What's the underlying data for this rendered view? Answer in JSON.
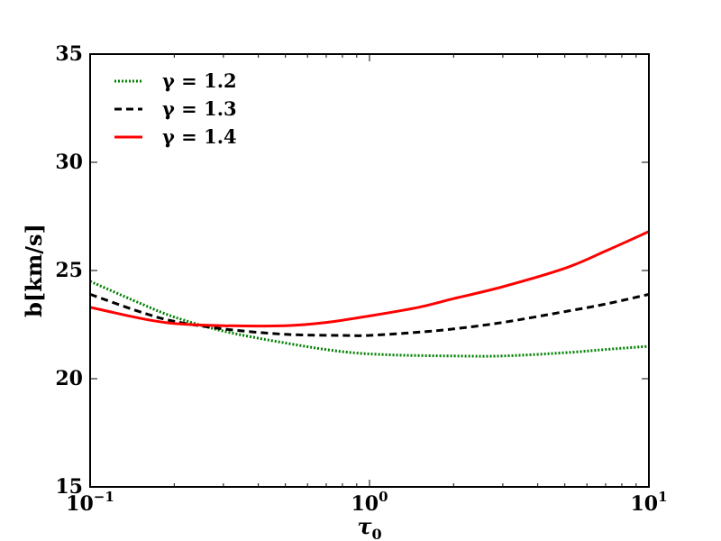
{
  "chart_data": {
    "type": "line",
    "xscale": "log",
    "xlim": [
      0.1,
      10
    ],
    "ylim": [
      15,
      35
    ],
    "xlabel_symbol": "τ",
    "xlabel_subscript": "0",
    "ylabel": "b[km/s]",
    "yticks": [
      15,
      20,
      25,
      30,
      35
    ],
    "xticks": [
      {
        "value": 0.1,
        "base": "10",
        "exp": "−1"
      },
      {
        "value": 1,
        "base": "10",
        "exp": "0"
      },
      {
        "value": 10,
        "base": "10",
        "exp": "1"
      }
    ],
    "grid": false,
    "legend_position": "top-left",
    "series": [
      {
        "name": "γ = 1.2",
        "color": "#008000",
        "dash": "dotted",
        "points": [
          [
            0.1,
            24.5
          ],
          [
            0.15,
            23.5
          ],
          [
            0.2,
            22.85
          ],
          [
            0.3,
            22.2
          ],
          [
            0.5,
            21.65
          ],
          [
            0.8,
            21.25
          ],
          [
            1.2,
            21.1
          ],
          [
            2.0,
            21.05
          ],
          [
            3.0,
            21.05
          ],
          [
            5.0,
            21.2
          ],
          [
            7.0,
            21.35
          ],
          [
            10,
            21.5
          ]
        ]
      },
      {
        "name": "γ = 1.3",
        "color": "#000000",
        "dash": "dashed",
        "points": [
          [
            0.1,
            23.9
          ],
          [
            0.15,
            23.1
          ],
          [
            0.2,
            22.65
          ],
          [
            0.3,
            22.3
          ],
          [
            0.5,
            22.05
          ],
          [
            0.8,
            22.0
          ],
          [
            1.0,
            22.0
          ],
          [
            1.5,
            22.15
          ],
          [
            2.0,
            22.3
          ],
          [
            3.0,
            22.6
          ],
          [
            5.0,
            23.1
          ],
          [
            7.0,
            23.45
          ],
          [
            10,
            23.9
          ]
        ]
      },
      {
        "name": "γ = 1.4",
        "color": "#ff0000",
        "dash": "solid",
        "points": [
          [
            0.1,
            23.3
          ],
          [
            0.15,
            22.8
          ],
          [
            0.2,
            22.55
          ],
          [
            0.3,
            22.45
          ],
          [
            0.5,
            22.45
          ],
          [
            0.7,
            22.6
          ],
          [
            1.0,
            22.9
          ],
          [
            1.5,
            23.3
          ],
          [
            2.0,
            23.7
          ],
          [
            3.0,
            24.25
          ],
          [
            5.0,
            25.1
          ],
          [
            7.0,
            25.9
          ],
          [
            10,
            26.8
          ]
        ]
      }
    ]
  }
}
